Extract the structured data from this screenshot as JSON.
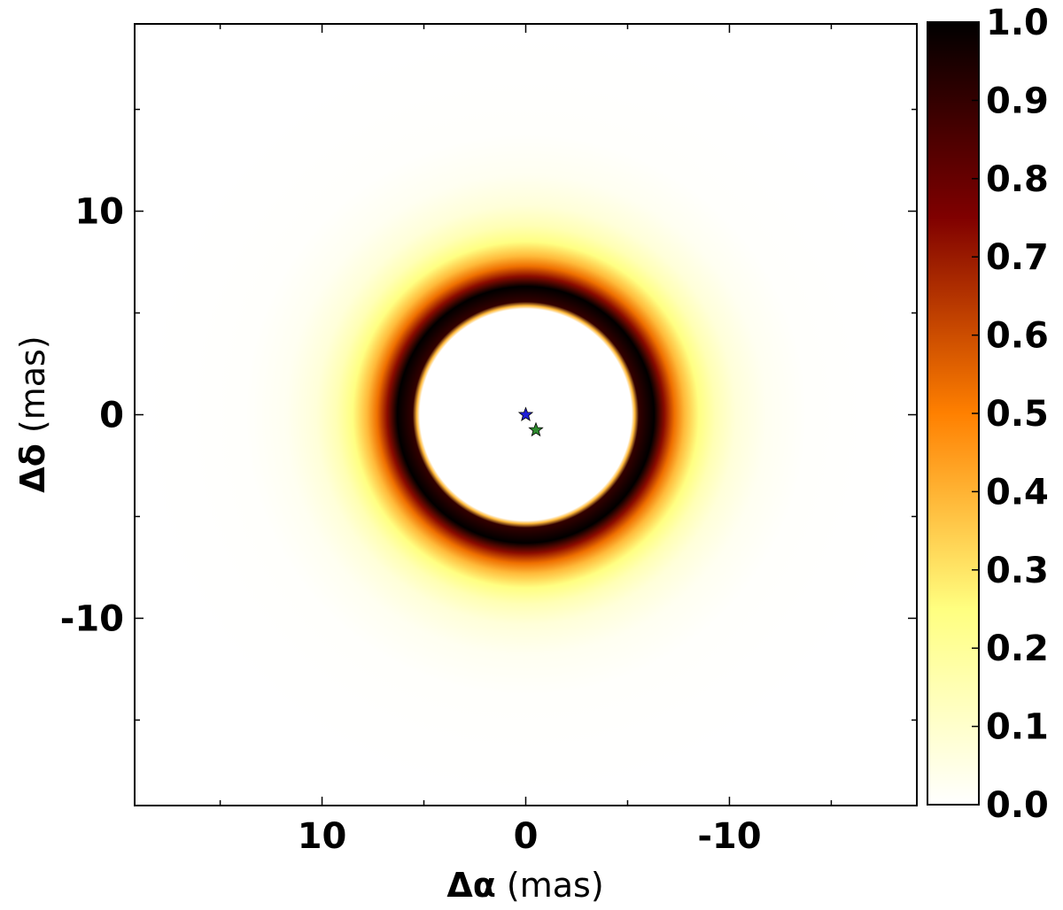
{
  "chart_data": {
    "type": "heatmap",
    "title": "",
    "xlabel": {
      "symbol": "Δα",
      "unit": "(mas)"
    },
    "ylabel": {
      "symbol": "Δδ",
      "unit": "(mas)"
    },
    "xlim": [
      19.2,
      -19.2
    ],
    "ylim": [
      -19.2,
      19.2
    ],
    "x_major_ticks": [
      10,
      0,
      -10
    ],
    "x_tick_labels": [
      "10",
      "0",
      "-10"
    ],
    "y_major_ticks": [
      10,
      0,
      -10
    ],
    "y_tick_labels": [
      "10",
      "0",
      "-10"
    ],
    "minor_ticks": [
      15,
      5,
      -5,
      -15
    ],
    "grid": false,
    "colormap": "afmhot_r",
    "colorbar": {
      "range": [
        0.0,
        1.0
      ],
      "ticks": [
        0.0,
        0.1,
        0.2,
        0.3,
        0.4,
        0.5,
        0.6,
        0.7,
        0.8,
        0.9,
        1.0
      ],
      "tick_labels": [
        "0.0",
        "0.1",
        "0.2",
        "0.3",
        "0.4",
        "0.5",
        "0.6",
        "0.7",
        "0.8",
        "0.9",
        "1.0"
      ]
    },
    "image": {
      "description_shape": "ring",
      "center": [
        0,
        0
      ],
      "inner_radius_mas": 5.2,
      "peak_radius_mas": 6.3,
      "outer_halo_radius_mas": 15,
      "peak_intensity": 1.0
    },
    "markers": [
      {
        "name": "blue-star",
        "x": 0.0,
        "y": 0.0,
        "color": "#1f1fd8"
      },
      {
        "name": "green-star",
        "x": -0.5,
        "y": -0.75,
        "color": "#2e8b2e"
      }
    ]
  }
}
